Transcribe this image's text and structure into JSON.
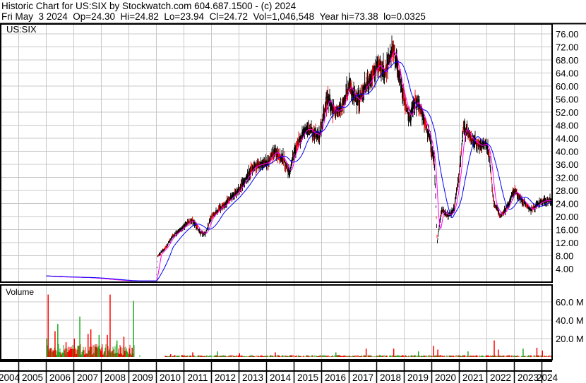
{
  "header": {
    "title": "Historic Chart for US:SIX by Stockwatch.com 604.687.1500 - (c) 2024",
    "quote": "Fri May  3 2024  Op=24.30  Hi=24.82  Lo=23.94  Cl=24.72  Vol=1,046,548  Year hi=73.38  lo=0.0325"
  },
  "chart_data": [
    {
      "type": "line",
      "title": "US:SIX",
      "ylim": [
        0,
        78
      ],
      "y_ticks": [
        "76.00",
        "72.00",
        "68.00",
        "64.00",
        "60.00",
        "56.00",
        "52.00",
        "48.00",
        "44.00",
        "40.00",
        "36.00",
        "32.00",
        "28.00",
        "24.00",
        "20.00",
        "16.00",
        "12.00",
        "8.00",
        "4.00"
      ],
      "x_ticks": [
        "2004",
        "2005",
        "2006",
        "2007",
        "2008",
        "2009",
        "2010",
        "2011",
        "2012",
        "2013",
        "2014",
        "2015",
        "2016",
        "2017",
        "2018",
        "2019",
        "2020",
        "2021",
        "2022",
        "2023",
        "2024"
      ],
      "grid": true,
      "colors": {
        "price": "#000000",
        "up": "#ff0000",
        "ma_short": "#ff00ff",
        "ma_long": "#0000ff"
      },
      "series": [
        {
          "x": [
            2006.0,
            2006.5,
            2007.0,
            2007.5,
            2008.0,
            2008.5,
            2009.0,
            2009.5,
            2010.0,
            2010.05,
            2010.3,
            2010.6,
            2011.0,
            2011.3,
            2011.6,
            2011.8,
            2012.0,
            2012.5,
            2013.0,
            2013.4,
            2013.7,
            2014.0,
            2014.3,
            2014.6,
            2014.85,
            2015.0,
            2015.4,
            2015.7,
            2015.9,
            2016.2,
            2016.5,
            2016.7,
            2017.0,
            2017.3,
            2017.6,
            2017.8,
            2018.0,
            2018.3,
            2018.6,
            2018.8,
            2019.0,
            2019.2,
            2019.4,
            2019.6,
            2019.9,
            2020.1,
            2020.2,
            2020.35,
            2020.6,
            2020.8,
            2021.0,
            2021.15,
            2021.4,
            2021.7,
            2022.0,
            2022.1,
            2022.25,
            2022.5,
            2022.8,
            2023.0,
            2023.3,
            2023.6,
            2023.9,
            2024.1,
            2024.34
          ],
          "y": [
            1.8,
            1.5,
            1.4,
            1.3,
            1.0,
            0.6,
            0.3,
            0.3,
            0.3,
            8,
            10,
            14,
            17,
            19,
            15,
            15,
            20,
            24,
            28,
            34,
            36,
            36,
            40,
            38,
            33,
            40,
            47,
            46,
            44,
            56,
            52,
            53,
            60,
            55,
            60,
            62,
            67,
            64,
            72,
            64,
            56,
            50,
            56,
            53,
            45,
            36,
            12,
            22,
            20,
            22,
            33,
            48,
            44,
            42,
            42,
            38,
            24,
            20,
            24,
            28,
            25,
            22,
            24,
            25,
            24.72
          ]
        }
      ]
    },
    {
      "type": "bar",
      "title": "Volume",
      "unit": "M",
      "ylim": [
        0,
        75
      ],
      "y_ticks": [
        "60.0 M",
        "40.0 M",
        "20.0 M"
      ],
      "x": [
        2006.0,
        2006.05,
        2006.3,
        2006.4,
        2006.7,
        2007.0,
        2007.2,
        2007.5,
        2007.6,
        2007.9,
        2008.2,
        2008.3,
        2008.55,
        2008.8,
        2009.1,
        2009.15,
        2010.5,
        2011.3,
        2012.2,
        2013.0,
        2014.3,
        2016.5,
        2017.6,
        2018.6,
        2019.5,
        2020.05,
        2020.2,
        2021.3,
        2022.25,
        2022.4,
        2023.3,
        2023.8,
        2024.0
      ],
      "values": [
        20,
        68,
        28,
        36,
        16,
        20,
        44,
        25,
        30,
        24,
        24,
        68,
        18,
        22,
        10,
        61,
        3,
        5,
        6,
        4,
        5,
        5,
        9,
        9,
        6,
        12,
        8,
        6,
        18,
        8,
        9,
        10,
        7
      ]
    }
  ]
}
